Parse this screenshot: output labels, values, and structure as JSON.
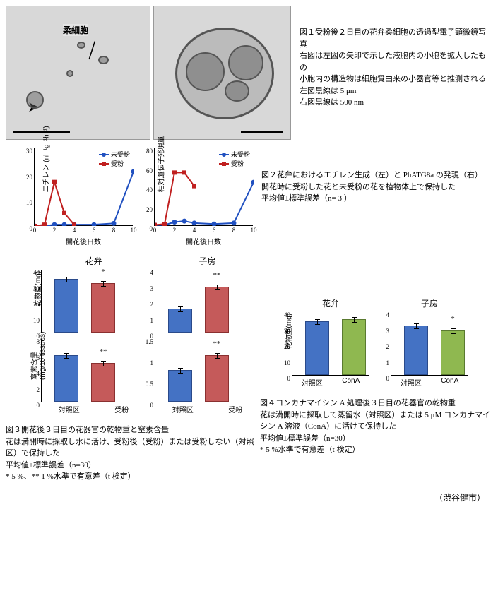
{
  "fig1": {
    "label": "柔細胞",
    "caption": "図１受粉後２日目の花弁柔細胞の透過型電子顕微鏡写真\n右図は左図の矢印で示した液胞内の小胞を拡大したもの\n小胞内の構造物は細胞質由来の小器官等と推測される\n左図黒線は 5 μm\n右図黒線は 500 nm"
  },
  "fig2": {
    "left": {
      "ylabel": "エチレン (nl⁻¹g⁻¹h⁻¹)",
      "xlabel": "開花後日数",
      "legend_un": "未受粉",
      "legend_pol": "受粉",
      "yticks": [
        0,
        10,
        20,
        30
      ],
      "xticks": [
        0,
        2,
        4,
        6,
        8,
        10
      ],
      "blue": [
        [
          0,
          0
        ],
        [
          1,
          0
        ],
        [
          2,
          0.5
        ],
        [
          3,
          0.5
        ],
        [
          4,
          0.5
        ],
        [
          6,
          0.5
        ],
        [
          8,
          1
        ],
        [
          10,
          21
        ]
      ],
      "red": [
        [
          0,
          0
        ],
        [
          1,
          0.5
        ],
        [
          2,
          17
        ],
        [
          3,
          5
        ],
        [
          4,
          0.5
        ]
      ]
    },
    "right": {
      "ylabel": "相対遺伝子発現量",
      "xlabel": "開花後日数",
      "legend_un": "未受粉",
      "legend_pol": "受粉",
      "yticks": [
        0,
        20,
        40,
        60,
        80
      ],
      "xticks": [
        0,
        2,
        4,
        6,
        8,
        10
      ],
      "blue": [
        [
          0,
          1
        ],
        [
          1,
          1
        ],
        [
          2,
          4
        ],
        [
          3,
          5
        ],
        [
          4,
          3
        ],
        [
          6,
          2
        ],
        [
          8,
          3
        ],
        [
          10,
          45
        ]
      ],
      "red": [
        [
          0,
          1
        ],
        [
          1,
          2
        ],
        [
          2,
          55
        ],
        [
          3,
          55
        ],
        [
          4,
          41
        ]
      ]
    },
    "caption": "図２花弁におけるエチレン生成（左）と PhATG8a の発現（右）\n開花時に受粉した花と未受粉の花を植物体上で保持した\n平均値±標準誤差（n= 3 ）"
  },
  "fig3": {
    "petal_title": "花弁",
    "ovary_title": "子房",
    "dry_label": "乾物重(mg)",
    "n_label": "窒素含量\n(mg/10 tissues)",
    "ctrl": "対照区",
    "pol": "受粉",
    "petal_dry_yticks": [
      0,
      10,
      20,
      30,
      40
    ],
    "petal_dry": {
      "ctrl": 34,
      "pol": 31,
      "sig": "*"
    },
    "ovary_dry_yticks": [
      0,
      1,
      2,
      3,
      4
    ],
    "ovary_dry": {
      "ctrl": 1.5,
      "pol": 2.9,
      "sig": "**"
    },
    "petal_n_yticks": [
      0,
      2,
      4,
      6,
      8
    ],
    "petal_n": {
      "ctrl": 5.9,
      "pol": 4.9,
      "sig": "**"
    },
    "ovary_n_yticks": [
      0,
      0.5,
      1.0,
      1.5
    ],
    "ovary_n": {
      "ctrl": 0.75,
      "pol": 1.1,
      "sig": "**"
    },
    "caption": "図３開花後３日目の花器官の乾物重と窒素含量\n花は満開時に採取し水に活け、受粉後（受粉）または受粉しない（対照区）で保持した\n平均値±標準誤差（n=30）\n* 5 %、** 1 %水準で有意差（t 検定）"
  },
  "fig4": {
    "petal_title": "花弁",
    "ovary_title": "子房",
    "dry_label": "乾物重(mg)",
    "ctrl": "対照区",
    "conA": "ConA",
    "petal_yticks": [
      0,
      10,
      20,
      30,
      40
    ],
    "petal": {
      "ctrl": 34,
      "conA": 35
    },
    "ovary_yticks": [
      0,
      1,
      2,
      3,
      4
    ],
    "ovary": {
      "ctrl": 3.1,
      "conA": 2.8,
      "sig": "*"
    },
    "caption": "図４コンカナマイシン A 処理後３日目の花器官の乾物重\n花は満開時に採取して蒸留水（対照区）または 5 μM コンカナマイシン A 溶液（ConA）に活けて保持した\n平均値±標準誤差（n=30）\n* 5 %水準で有意差（t 検定）"
  },
  "author": "（渋谷健市）"
}
